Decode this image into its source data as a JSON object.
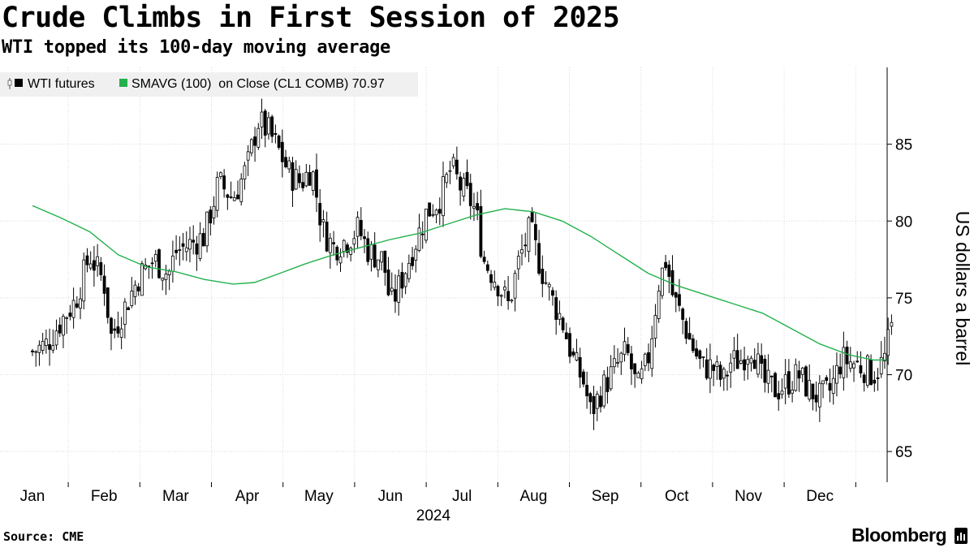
{
  "header": {
    "title": "Crude Climbs in First Session of 2025",
    "subtitle": "WTI topped its 100-day moving average"
  },
  "footer": {
    "source": "Source: CME",
    "brand": "Bloomberg"
  },
  "colors": {
    "candle": "#000000",
    "sma": "#22b14c",
    "grid": "#d9d9d9",
    "legend_bg": "#f0f0f0"
  },
  "chart_data": {
    "type": "line",
    "title": "Crude Climbs in First Session of 2025",
    "subtitle": "WTI topped its 100-day moving average",
    "ylabel": "US dollars a barrel",
    "xlabel": "2024",
    "ylim": [
      63,
      90
    ],
    "yticks": [
      65,
      70,
      75,
      80,
      85
    ],
    "xticks": [
      "Jan",
      "Feb",
      "Mar",
      "Apr",
      "May",
      "Jun",
      "Jul",
      "Aug",
      "Sep",
      "Oct",
      "Nov",
      "Dec"
    ],
    "year_label": "2024",
    "grid": true,
    "legend": [
      {
        "label": "WTI futures",
        "marker": "candle"
      },
      {
        "label": "SMAVG (100)  on Close (CL1 COMB) 70.97",
        "marker": "square"
      }
    ],
    "series": [
      {
        "name": "WTI futures",
        "style": "candlestick",
        "close_path": [
          [
            0.0,
            71.5
          ],
          [
            0.2,
            72.0
          ],
          [
            0.4,
            73.5
          ],
          [
            0.6,
            74.8
          ],
          [
            0.8,
            77.8
          ],
          [
            1.0,
            76.0
          ],
          [
            1.1,
            72.5
          ],
          [
            1.3,
            74.5
          ],
          [
            1.5,
            76.5
          ],
          [
            1.7,
            77.5
          ],
          [
            1.9,
            76.5
          ],
          [
            2.0,
            78.0
          ],
          [
            2.2,
            78.5
          ],
          [
            2.4,
            79.0
          ],
          [
            2.6,
            82.5
          ],
          [
            2.8,
            81.5
          ],
          [
            3.0,
            83.5
          ],
          [
            3.15,
            86.5
          ],
          [
            3.3,
            85.8
          ],
          [
            3.45,
            84.5
          ],
          [
            3.6,
            83.0
          ],
          [
            3.75,
            82.5
          ],
          [
            3.9,
            83.5
          ],
          [
            4.05,
            79.5
          ],
          [
            4.2,
            78.3
          ],
          [
            4.4,
            78.8
          ],
          [
            4.55,
            79.5
          ],
          [
            4.7,
            78.0
          ],
          [
            4.9,
            77.5
          ],
          [
            5.0,
            74.5
          ],
          [
            5.1,
            75.5
          ],
          [
            5.3,
            78.0
          ],
          [
            5.5,
            80.5
          ],
          [
            5.7,
            81.5
          ],
          [
            5.85,
            83.5
          ],
          [
            6.0,
            82.0
          ],
          [
            6.1,
            81.5
          ],
          [
            6.2,
            80.5
          ],
          [
            6.3,
            77.5
          ],
          [
            6.5,
            76.0
          ],
          [
            6.65,
            74.5
          ],
          [
            6.8,
            77.5
          ],
          [
            6.95,
            79.5
          ],
          [
            7.1,
            77.0
          ],
          [
            7.25,
            75.0
          ],
          [
            7.4,
            73.5
          ],
          [
            7.55,
            71.0
          ],
          [
            7.7,
            69.5
          ],
          [
            7.8,
            67.5
          ],
          [
            7.95,
            69.0
          ],
          [
            8.15,
            70.5
          ],
          [
            8.3,
            71.5
          ],
          [
            8.45,
            69.0
          ],
          [
            8.6,
            71.0
          ],
          [
            8.75,
            76.0
          ],
          [
            8.85,
            77.5
          ],
          [
            8.95,
            75.0
          ],
          [
            9.05,
            74.0
          ],
          [
            9.2,
            72.0
          ],
          [
            9.35,
            70.5
          ],
          [
            9.5,
            70.5
          ],
          [
            9.65,
            69.5
          ],
          [
            9.75,
            70.8
          ],
          [
            9.9,
            71.0
          ],
          [
            10.05,
            72.0
          ],
          [
            10.2,
            69.5
          ],
          [
            10.4,
            69.0
          ],
          [
            10.55,
            69.5
          ],
          [
            10.7,
            70.0
          ],
          [
            10.85,
            69.0
          ],
          [
            11.0,
            68.5
          ],
          [
            11.15,
            69.0
          ],
          [
            11.3,
            71.0
          ],
          [
            11.45,
            70.8
          ],
          [
            11.6,
            70.5
          ],
          [
            11.75,
            70.0
          ],
          [
            11.9,
            71.0
          ],
          [
            12.0,
            73.0
          ]
        ]
      },
      {
        "name": "SMAVG (100)  on Close (CL1 COMB)",
        "style": "line",
        "last_value": 70.97,
        "points": [
          [
            0.0,
            81.0
          ],
          [
            0.4,
            80.2
          ],
          [
            0.8,
            79.3
          ],
          [
            1.2,
            77.8
          ],
          [
            1.6,
            77.0
          ],
          [
            2.0,
            76.7
          ],
          [
            2.4,
            76.2
          ],
          [
            2.8,
            75.9
          ],
          [
            3.1,
            76.0
          ],
          [
            3.4,
            76.5
          ],
          [
            3.8,
            77.2
          ],
          [
            4.2,
            77.8
          ],
          [
            4.6,
            78.3
          ],
          [
            5.0,
            78.8
          ],
          [
            5.4,
            79.2
          ],
          [
            5.8,
            79.8
          ],
          [
            6.2,
            80.4
          ],
          [
            6.6,
            80.8
          ],
          [
            7.0,
            80.6
          ],
          [
            7.4,
            80.0
          ],
          [
            7.8,
            79.0
          ],
          [
            8.2,
            77.8
          ],
          [
            8.6,
            76.6
          ],
          [
            9.0,
            75.8
          ],
          [
            9.4,
            75.2
          ],
          [
            9.8,
            74.6
          ],
          [
            10.2,
            74.0
          ],
          [
            10.6,
            73.0
          ],
          [
            11.0,
            72.0
          ],
          [
            11.4,
            71.3
          ],
          [
            11.75,
            70.95
          ],
          [
            11.95,
            70.97
          ]
        ]
      }
    ]
  }
}
